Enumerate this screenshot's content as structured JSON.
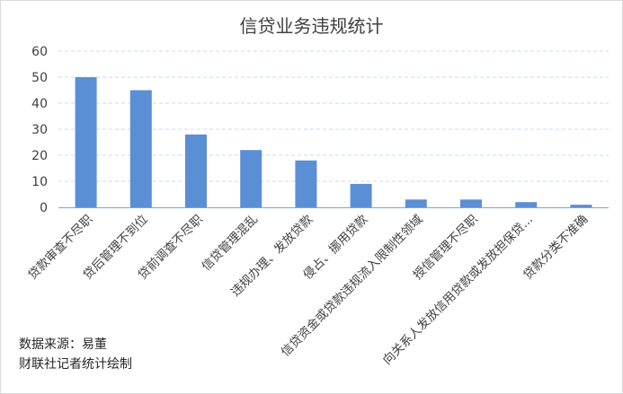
{
  "chart_data": {
    "type": "bar",
    "title": "信贷业务违规统计",
    "categories": [
      "贷款审查不尽职",
      "贷后管理不到位",
      "贷前调查不尽职",
      "信贷管理混乱",
      "违规办理、发放贷款",
      "侵占、挪用贷款",
      "信贷资金或贷款违规流入限制性领域",
      "授信管理不尽职",
      "向关系人发放信用贷款或发放担保贷...",
      "贷款分类不准确"
    ],
    "values": [
      50,
      45,
      28,
      22,
      18,
      9,
      3,
      3,
      2,
      1
    ],
    "ylim": [
      0,
      60
    ],
    "yticks": [
      "0",
      "10",
      "20",
      "30",
      "40",
      "50",
      "60"
    ],
    "xlabel": "",
    "ylabel": "",
    "grid": "horizontal dashed",
    "bar_color": "#5b8fd5",
    "grid_color": "#c9dde6",
    "axis_color": "#7fa6c9"
  },
  "notes": {
    "source_line": "数据来源：易董",
    "credit_line": "财联社记者统计绘制"
  }
}
